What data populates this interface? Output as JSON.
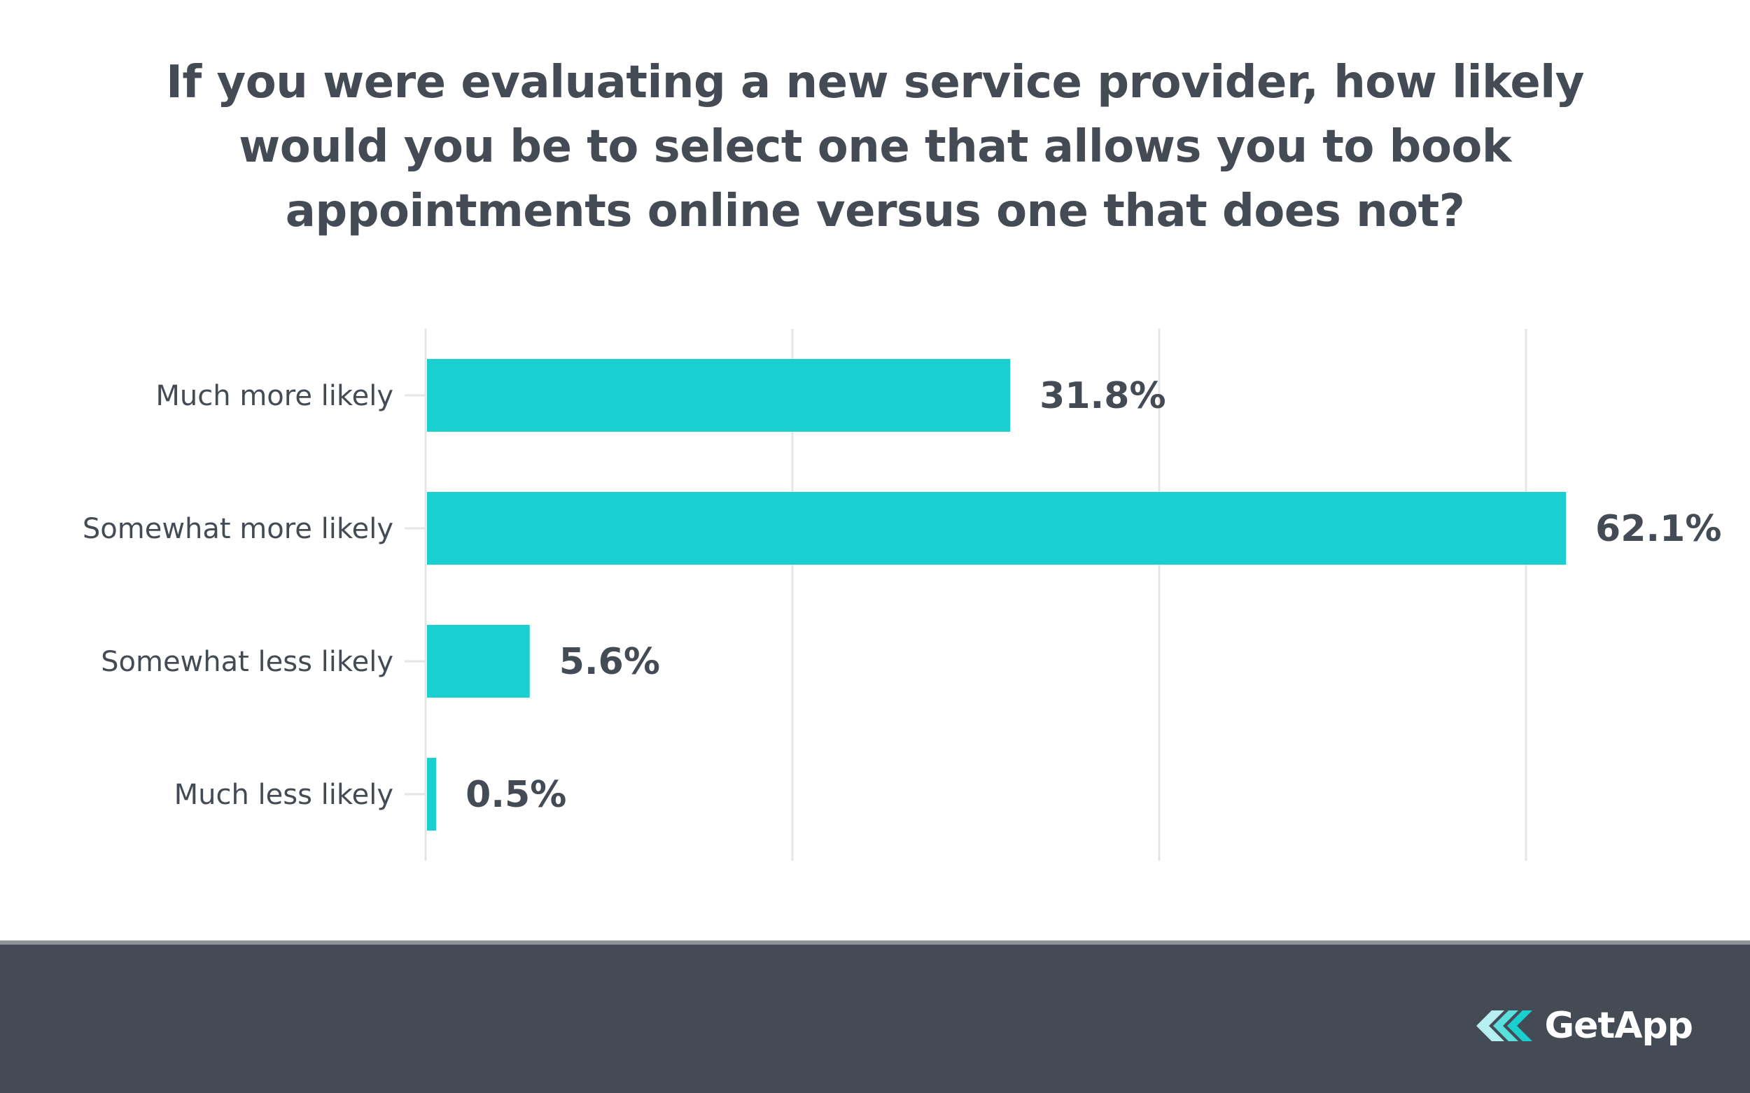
{
  "chart_data": {
    "type": "bar",
    "orientation": "horizontal",
    "title": "If you were evaluating a new service provider, how likely would you be to select one that allows you to book appointments online versus one that does not?",
    "categories": [
      "Much more likely",
      "Somewhat more likely",
      "Somewhat less likely",
      "Much less likely"
    ],
    "values": [
      31.8,
      62.1,
      5.6,
      0.5
    ],
    "value_labels": [
      "31.8%",
      "62.1%",
      "5.6%",
      "0.5%"
    ],
    "xlim": [
      0,
      60
    ],
    "grid": true,
    "color": "#19cfcf"
  },
  "footer": {
    "brand": "GetApp",
    "logo_icon": "getapp-logo-icon"
  }
}
